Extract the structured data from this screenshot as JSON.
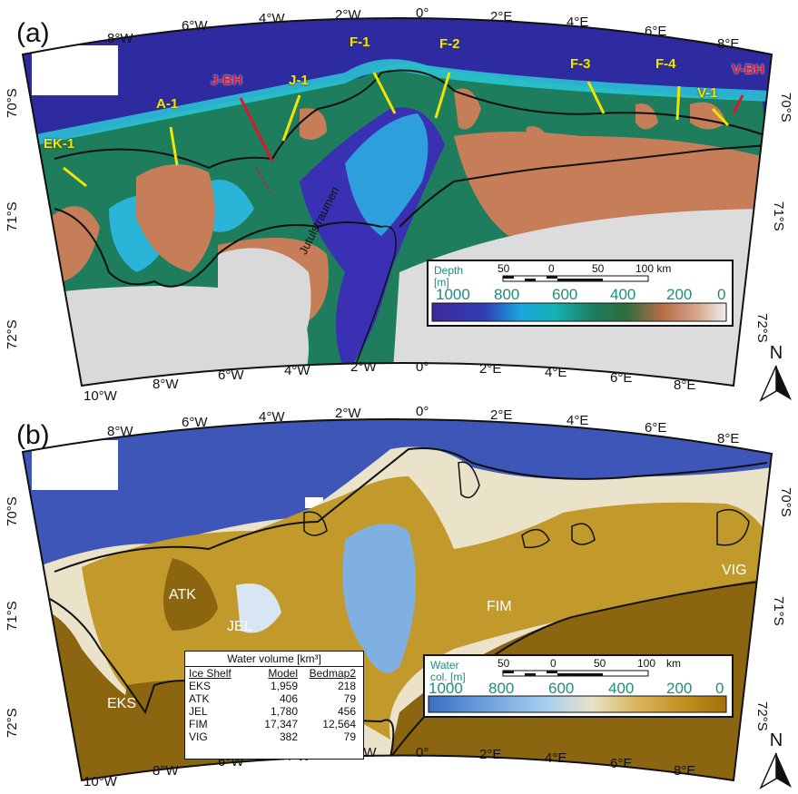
{
  "panel_a": {
    "letter": "(a)",
    "top_longitudes": [
      "8°W",
      "6°W",
      "4°W",
      "2°W",
      "0°",
      "2°E",
      "4°E",
      "6°E",
      "8°E"
    ],
    "bottom_longitudes": [
      "10°W",
      "8°W",
      "6°W",
      "4°W",
      "2°W",
      "0°",
      "2°E",
      "4°E",
      "6°E",
      "8°E"
    ],
    "left_latitudes": [
      "70°S",
      "71°S",
      "72°S"
    ],
    "right_latitudes": [
      "70°S",
      "71°S",
      "72°S"
    ],
    "profiles": [
      "EK-1",
      "A-1",
      "J-BH",
      "J-1",
      "F-1",
      "F-2",
      "F-3",
      "F-4",
      "V-1",
      "V-BH"
    ],
    "place_label": "Jutulstraumen",
    "legend": {
      "title": "Depth\n[m]",
      "scale": [
        "50",
        "0",
        "50",
        "100 km"
      ],
      "ticks": [
        "1000",
        "800",
        "600",
        "400",
        "200",
        "0"
      ],
      "colors": [
        "#3b2a9c",
        "#2f3fb5",
        "#1aa6e0",
        "#13b3b5",
        "#1b7c5e",
        "#2e6e3e",
        "#b56c45",
        "#d8a58a",
        "#eeeeee"
      ]
    },
    "colors": {
      "ocean": "#2e2ba0",
      "shelf": "#1d7d5c",
      "trough": "#29b4d8",
      "land": "#c57e58",
      "ice": "#dcdcdc",
      "profile": "#f2e600",
      "borehole": "#d9182e"
    }
  },
  "panel_b": {
    "letter": "(b)",
    "top_longitudes": [
      "8°W",
      "6°W",
      "4°W",
      "2°W",
      "0°",
      "2°E",
      "4°E",
      "6°E",
      "8°E"
    ],
    "bottom_longitudes": [
      "10°W",
      "8°W",
      "6°W",
      "4°W",
      "2°W",
      "0°",
      "2°E",
      "4°E",
      "6°E",
      "8°E"
    ],
    "left_latitudes": [
      "70°S",
      "71°S",
      "72°S"
    ],
    "right_latitudes": [
      "70°S",
      "71°S",
      "72°S"
    ],
    "shelves": [
      "ATK",
      "JEL",
      "EKS",
      "FIM",
      "VIG"
    ],
    "table": {
      "title": "Water volume [km³]",
      "headers": [
        "Ice Shelf",
        "Model",
        "Bedmap2"
      ],
      "rows": [
        [
          "EKS",
          "1,959",
          "218"
        ],
        [
          "ATK",
          "406",
          "79"
        ],
        [
          "JEL",
          "1,780",
          "456"
        ],
        [
          "FIM",
          "17,347",
          "12,564"
        ],
        [
          "VIG",
          "382",
          "79"
        ]
      ]
    },
    "legend": {
      "title": "Water\ncol. [m]",
      "scale": [
        "50",
        "0",
        "50",
        "100",
        "km"
      ],
      "ticks": [
        "1000",
        "800",
        "600",
        "400",
        "200",
        "0"
      ],
      "colors": [
        "#3a6fc4",
        "#6ea2de",
        "#a9cfee",
        "#e8e2c8",
        "#d8b55a",
        "#c49124",
        "#a47008"
      ]
    },
    "colors": {
      "ocean": "#3d56b8",
      "water": "#eae3c9",
      "thick": "#7fb0e0",
      "thin": "#c29a2c",
      "land": "#8c6510"
    }
  },
  "north_label": "N"
}
